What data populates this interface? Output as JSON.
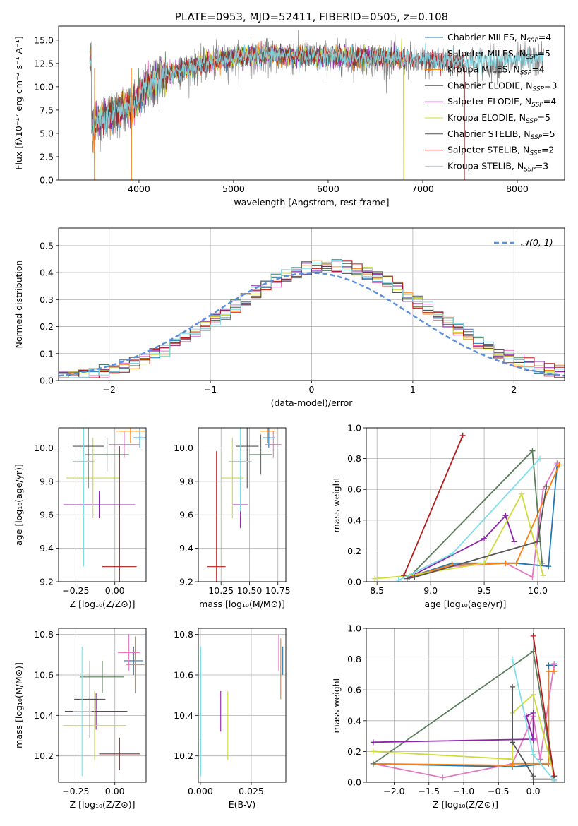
{
  "colors": {
    "chabrier_miles": "#1f77b4",
    "salpeter_miles": "#e377c2",
    "kroupa_miles": "#ff7f0e",
    "chabrier_elodie": "#5a7d5a",
    "salpeter_elodie": "#8e24aa",
    "kroupa_elodie": "#cddc39",
    "chabrier_stelib": "#555555",
    "salpeter_stelib": "#b71c1c",
    "kroupa_stelib": "#80deea",
    "normal": "#5b8fdc",
    "grid": "#b0b0b0"
  },
  "chart_data": [
    {
      "id": "spectrum",
      "type": "line",
      "title": "PLATE=0953, MJD=52411, FIBERID=0505, z=0.108",
      "xlabel": "wavelength [Angstrom, rest frame]",
      "ylabel": "Flux [fλ10⁻¹⁷ erg cm⁻² s⁻¹ A⁻¹]",
      "xlim": [
        3150,
        8500
      ],
      "ylim": [
        0,
        16.5
      ],
      "xticks": [
        4000,
        5000,
        6000,
        7000,
        8000
      ],
      "yticks": [
        0.0,
        2.5,
        5.0,
        7.5,
        10.0,
        12.5,
        15.0
      ],
      "grid": false,
      "legend_position": "top-right",
      "legend": [
        {
          "label": "Chabrier MILES, N",
          "sub": "SSP",
          "tail": "=4",
          "color_key": "chabrier_miles"
        },
        {
          "label": "Salpeter MILES, N",
          "sub": "SSP",
          "tail": "=5",
          "color_key": "salpeter_miles"
        },
        {
          "label": "Kroupa MILES, N",
          "sub": "SSP",
          "tail": "=4",
          "color_key": "kroupa_miles"
        },
        {
          "label": "Chabrier ELODIE, N",
          "sub": "SSP",
          "tail": "=3",
          "color_key": "chabrier_elodie"
        },
        {
          "label": "Salpeter ELODIE, N",
          "sub": "SSP",
          "tail": "=4",
          "color_key": "salpeter_elodie"
        },
        {
          "label": "Kroupa ELODIE, N",
          "sub": "SSP",
          "tail": "=5",
          "color_key": "kroupa_elodie"
        },
        {
          "label": "Chabrier STELIB, N",
          "sub": "SSP",
          "tail": "=5",
          "color_key": "chabrier_stelib"
        },
        {
          "label": "Salpeter STELIB, N",
          "sub": "SSP",
          "tail": "=2",
          "color_key": "salpeter_stelib"
        },
        {
          "label": "Kroupa STELIB, N",
          "sub": "SSP",
          "tail": "=3",
          "color_key": "kroupa_stelib"
        }
      ],
      "continuum": [
        [
          3500,
          5.5
        ],
        [
          3600,
          6.5
        ],
        [
          3800,
          7.2
        ],
        [
          3950,
          8.0
        ],
        [
          4100,
          10.0
        ],
        [
          4300,
          11.2
        ],
        [
          4600,
          12.1
        ],
        [
          4900,
          12.8
        ],
        [
          5200,
          13.2
        ],
        [
          5500,
          13.2
        ],
        [
          5800,
          13.1
        ],
        [
          6200,
          13.0
        ],
        [
          6600,
          12.9
        ],
        [
          7000,
          12.7
        ],
        [
          7400,
          12.5
        ],
        [
          7800,
          12.6
        ],
        [
          8280,
          12.9
        ]
      ],
      "model_x_range": [
        3480,
        6800
      ],
      "model_x_range_stelib": [
        3480,
        7440
      ],
      "model_x_range_kroupa_stelib": [
        3480,
        8280
      ],
      "dropouts": [
        [
          3530,
          0
        ],
        [
          3920,
          0
        ],
        [
          6800,
          0
        ],
        [
          7440,
          0
        ]
      ]
    },
    {
      "id": "residuals",
      "type": "bar",
      "xlabel": "(data-model)/error",
      "ylabel": "Normed distribution",
      "xlim": [
        -2.5,
        2.5
      ],
      "ylim": [
        0,
        0.565
      ],
      "xticks": [
        -2,
        -1,
        0,
        1,
        2
      ],
      "yticks": [
        0.0,
        0.1,
        0.2,
        0.3,
        0.4,
        0.5
      ],
      "grid": true,
      "legend_position": "top-right",
      "legend": [
        {
          "label": "𝒩(0, 1)",
          "color_key": "normal"
        }
      ],
      "bin_width": 0.1
    },
    {
      "id": "age_vs_Z",
      "type": "scatter",
      "xlabel": "Z [log₁₀(Z/Z⊙)]",
      "ylabel": "age  [log₁₀(age/yr)]",
      "xlim": [
        -0.36,
        0.2
      ],
      "ylim": [
        9.2,
        10.12
      ],
      "xticks": [
        -0.25,
        0.0
      ],
      "yticks": [
        9.2,
        9.4,
        9.6,
        9.8,
        10.0
      ],
      "grid": true,
      "series": [
        {
          "color_key": "chabrier_miles",
          "x": 0.16,
          "y": 10.06,
          "xerr": 0.04,
          "yerr": 0.06
        },
        {
          "color_key": "salpeter_miles",
          "x": 0.06,
          "y": 10.02,
          "xerr": 0.1,
          "yerr": 0.08
        },
        {
          "color_key": "kroupa_miles",
          "x": 0.1,
          "y": 10.1,
          "xerr": 0.09,
          "yerr": 0.07
        },
        {
          "color_key": "chabrier_elodie",
          "x": -0.05,
          "y": 9.96,
          "xerr": 0.14,
          "yerr": 0.1
        },
        {
          "color_key": "salpeter_elodie",
          "x": -0.1,
          "y": 9.66,
          "xerr": 0.23,
          "yerr": 0.08
        },
        {
          "color_key": "kroupa_elodie",
          "x": -0.14,
          "y": 9.82,
          "xerr": 0.17,
          "yerr": 0.24
        },
        {
          "color_key": "chabrier_stelib",
          "x": -0.17,
          "y": 10.01,
          "xerr": 0.1,
          "yerr": 0.25
        },
        {
          "color_key": "salpeter_stelib",
          "x": 0.03,
          "y": 9.29,
          "xerr": 0.11,
          "yerr": 0.72
        },
        {
          "color_key": "kroupa_stelib",
          "x": -0.2,
          "y": 9.92,
          "xerr": 0.07,
          "yerr": 0.63
        }
      ]
    },
    {
      "id": "age_vs_mass",
      "type": "scatter",
      "xlabel": "mass [log₁₀(M/M⊙)]",
      "ylabel": "",
      "xlim": [
        10.05,
        10.82
      ],
      "ylim": [
        9.2,
        10.12
      ],
      "xticks": [
        10.25,
        10.5,
        10.75
      ],
      "yticks": [
        9.2,
        9.4,
        9.6,
        9.8,
        10.0
      ],
      "grid": true,
      "series": [
        {
          "color_key": "chabrier_miles",
          "x": 10.67,
          "y": 10.06,
          "xerr": 0.05,
          "yerr": 0.06
        },
        {
          "color_key": "salpeter_miles",
          "x": 10.71,
          "y": 10.02,
          "xerr": 0.07,
          "yerr": 0.08
        },
        {
          "color_key": "kroupa_miles",
          "x": 10.66,
          "y": 10.1,
          "xerr": 0.07,
          "yerr": 0.07
        },
        {
          "color_key": "chabrier_elodie",
          "x": 10.6,
          "y": 9.96,
          "xerr": 0.1,
          "yerr": 0.12
        },
        {
          "color_key": "salpeter_elodie",
          "x": 10.42,
          "y": 9.66,
          "xerr": 0.07,
          "yerr": 0.14
        },
        {
          "color_key": "kroupa_elodie",
          "x": 10.35,
          "y": 9.82,
          "xerr": 0.1,
          "yerr": 0.24
        },
        {
          "color_key": "chabrier_stelib",
          "x": 10.48,
          "y": 10.01,
          "xerr": 0.1,
          "yerr": 0.25
        },
        {
          "color_key": "salpeter_stelib",
          "x": 10.21,
          "y": 9.29,
          "xerr": 0.08,
          "yerr": 0.69
        },
        {
          "color_key": "kroupa_stelib",
          "x": 10.42,
          "y": 9.92,
          "xerr": 0.1,
          "yerr": 0.3
        }
      ]
    },
    {
      "id": "weight_vs_age",
      "type": "line",
      "xlabel": "age  [log₁₀(age/yr)]",
      "ylabel": "mass weight",
      "xlim": [
        8.4,
        10.25
      ],
      "ylim": [
        0.0,
        1.0
      ],
      "xticks": [
        8.5,
        9.0,
        9.5,
        10.0
      ],
      "yticks": [
        0.0,
        0.2,
        0.4,
        0.6,
        0.8,
        1.0
      ],
      "grid": true,
      "series": [
        {
          "color_key": "chabrier_miles",
          "x": [
            8.8,
            9.2,
            9.8,
            10.1,
            10.18
          ],
          "y": [
            0.03,
            0.12,
            0.12,
            0.1,
            0.76
          ]
        },
        {
          "color_key": "salpeter_miles",
          "x": [
            8.8,
            9.2,
            9.7,
            9.95,
            10.05,
            10.18
          ],
          "y": [
            0.03,
            0.1,
            0.12,
            0.03,
            0.6,
            0.77
          ]
        },
        {
          "color_key": "kroupa_miles",
          "x": [
            8.8,
            9.2,
            9.7,
            9.8,
            10.2
          ],
          "y": [
            0.03,
            0.11,
            0.12,
            0.12,
            0.76
          ]
        },
        {
          "color_key": "chabrier_elodie",
          "x": [
            8.8,
            9.95,
            10.04
          ],
          "y": [
            0.03,
            0.85,
            0.12
          ]
        },
        {
          "color_key": "salpeter_elodie",
          "x": [
            8.8,
            9.5,
            9.7,
            9.78
          ],
          "y": [
            0.03,
            0.28,
            0.43,
            0.26
          ]
        },
        {
          "color_key": "kroupa_elodie",
          "x": [
            8.48,
            8.8,
            9.5,
            9.85,
            10.05
          ],
          "y": [
            0.02,
            0.04,
            0.12,
            0.57,
            0.04
          ]
        },
        {
          "color_key": "chabrier_stelib",
          "x": [
            8.78,
            8.85,
            10.0,
            10.08
          ],
          "y": [
            0.02,
            0.03,
            0.26,
            0.62
          ]
        },
        {
          "color_key": "salpeter_stelib",
          "x": [
            8.75,
            9.3
          ],
          "y": [
            0.04,
            0.95
          ]
        },
        {
          "color_key": "kroupa_stelib",
          "x": [
            8.7,
            9.2,
            10.02
          ],
          "y": [
            0.01,
            0.18,
            0.8
          ]
        }
      ]
    },
    {
      "id": "mass_vs_Z",
      "type": "scatter",
      "xlabel": "Z [log₁₀(Z/Z⊙)]",
      "ylabel": "mass [log₁₀(M/M⊙)]",
      "xlim": [
        -0.36,
        0.2
      ],
      "ylim": [
        10.07,
        10.83
      ],
      "xticks": [
        -0.25,
        0.0
      ],
      "yticks": [
        10.2,
        10.4,
        10.6,
        10.8
      ],
      "grid": true,
      "series": [
        {
          "color_key": "chabrier_miles",
          "x": 0.12,
          "y": 10.67,
          "xerr": 0.06,
          "yerr": 0.07
        },
        {
          "color_key": "salpeter_miles",
          "x": 0.09,
          "y": 10.71,
          "xerr": 0.07,
          "yerr": 0.09
        },
        {
          "color_key": "kroupa_miles",
          "x": 0.13,
          "y": 10.65,
          "xerr": 0.06,
          "yerr": 0.14
        },
        {
          "color_key": "chabrier_elodie",
          "x": -0.08,
          "y": 10.59,
          "xerr": 0.14,
          "yerr": 0.08
        },
        {
          "color_key": "salpeter_elodie",
          "x": -0.12,
          "y": 10.42,
          "xerr": 0.2,
          "yerr": 0.09
        },
        {
          "color_key": "kroupa_elodie",
          "x": -0.13,
          "y": 10.35,
          "xerr": 0.2,
          "yerr": 0.17
        },
        {
          "color_key": "chabrier_stelib",
          "x": -0.16,
          "y": 10.48,
          "xerr": 0.1,
          "yerr": 0.19
        },
        {
          "color_key": "salpeter_stelib",
          "x": 0.03,
          "y": 10.21,
          "xerr": 0.13,
          "yerr": 0.08
        },
        {
          "color_key": "kroupa_stelib",
          "x": -0.21,
          "y": 10.42,
          "xerr": 0.06,
          "yerr": 0.32
        }
      ]
    },
    {
      "id": "mass_vs_ebv",
      "type": "scatter",
      "xlabel": "E(B-V)",
      "ylabel": "",
      "xlim": [
        -0.001,
        0.042
      ],
      "ylim": [
        10.07,
        10.83
      ],
      "xticks": [
        0.0,
        0.025
      ],
      "yticks": [
        10.2,
        10.4,
        10.6,
        10.8
      ],
      "grid": true,
      "series": [
        {
          "color_key": "chabrier_miles",
          "x": 0.0405,
          "y": 10.67,
          "xerr": 0,
          "yerr": 0.07
        },
        {
          "color_key": "salpeter_miles",
          "x": 0.0385,
          "y": 10.71,
          "xerr": 0,
          "yerr": 0.09
        },
        {
          "color_key": "kroupa_miles",
          "x": 0.0395,
          "y": 10.63,
          "xerr": 0,
          "yerr": 0.15
        },
        {
          "color_key": "chabrier_elodie",
          "x": 0.0001,
          "y": 10.59,
          "xerr": 0,
          "yerr": 0.12
        },
        {
          "color_key": "salpeter_elodie",
          "x": 0.01,
          "y": 10.42,
          "xerr": 0,
          "yerr": 0.1
        },
        {
          "color_key": "kroupa_elodie",
          "x": 0.0135,
          "y": 10.35,
          "xerr": 0,
          "yerr": 0.17
        },
        {
          "color_key": "chabrier_stelib",
          "x": 0.0,
          "y": 10.48,
          "xerr": 0,
          "yerr": 0.19
        },
        {
          "color_key": "salpeter_stelib",
          "x": 0.0,
          "y": 10.21,
          "xerr": 0,
          "yerr": 0.05
        },
        {
          "color_key": "kroupa_stelib",
          "x": 0.0002,
          "y": 10.42,
          "xerr": 0,
          "yerr": 0.32
        }
      ]
    },
    {
      "id": "weight_vs_Z",
      "type": "line",
      "xlabel": "Z [log₁₀(Z/Z⊙)]",
      "ylabel": "mass weight",
      "xlim": [
        -2.4,
        0.45
      ],
      "ylim": [
        0.0,
        1.0
      ],
      "xticks": [
        -2.0,
        -1.5,
        -1.0,
        -0.5,
        0.0
      ],
      "yticks": [
        0.0,
        0.2,
        0.4,
        0.6,
        0.8,
        1.0
      ],
      "grid": true,
      "series": [
        {
          "color_key": "chabrier_miles",
          "x": [
            -2.3,
            -0.3,
            0.22,
            0.22,
            0.3
          ],
          "y": [
            0.12,
            0.1,
            0.12,
            0.76,
            0.76
          ]
        },
        {
          "color_key": "salpeter_miles",
          "x": [
            -2.3,
            -1.3,
            -0.3,
            0.0,
            0.1,
            0.3
          ],
          "y": [
            0.12,
            0.03,
            0.12,
            0.43,
            0.15,
            0.77
          ]
        },
        {
          "color_key": "kroupa_miles",
          "x": [
            -2.3,
            -0.3,
            -0.3,
            0.22,
            0.22,
            0.3
          ],
          "y": [
            0.12,
            0.11,
            0.12,
            0.12,
            0.72,
            0.72
          ]
        },
        {
          "color_key": "chabrier_elodie",
          "x": [
            -2.3,
            0.0,
            0.3
          ],
          "y": [
            0.12,
            0.85,
            0.02
          ]
        },
        {
          "color_key": "salpeter_elodie",
          "x": [
            -2.3,
            0.0,
            -0.1,
            0.0,
            0.0
          ],
          "y": [
            0.26,
            0.28,
            0.43,
            0.45,
            0.27
          ]
        },
        {
          "color_key": "kroupa_elodie",
          "x": [
            -2.3,
            -0.3,
            -0.3,
            0.0,
            0.3
          ],
          "y": [
            0.2,
            0.15,
            0.45,
            0.57,
            0.04
          ]
        },
        {
          "color_key": "chabrier_stelib",
          "x": [
            -0.3,
            -0.3,
            0.0,
            0.0,
            0.3
          ],
          "y": [
            0.62,
            0.26,
            0.04,
            0.02,
            0.02
          ]
        },
        {
          "color_key": "salpeter_stelib",
          "x": [
            0.0,
            0.3
          ],
          "y": [
            0.95,
            0.04
          ]
        },
        {
          "color_key": "kroupa_stelib",
          "x": [
            -0.3,
            0.0,
            0.3
          ],
          "y": [
            0.8,
            0.18,
            0.01
          ]
        }
      ]
    }
  ]
}
